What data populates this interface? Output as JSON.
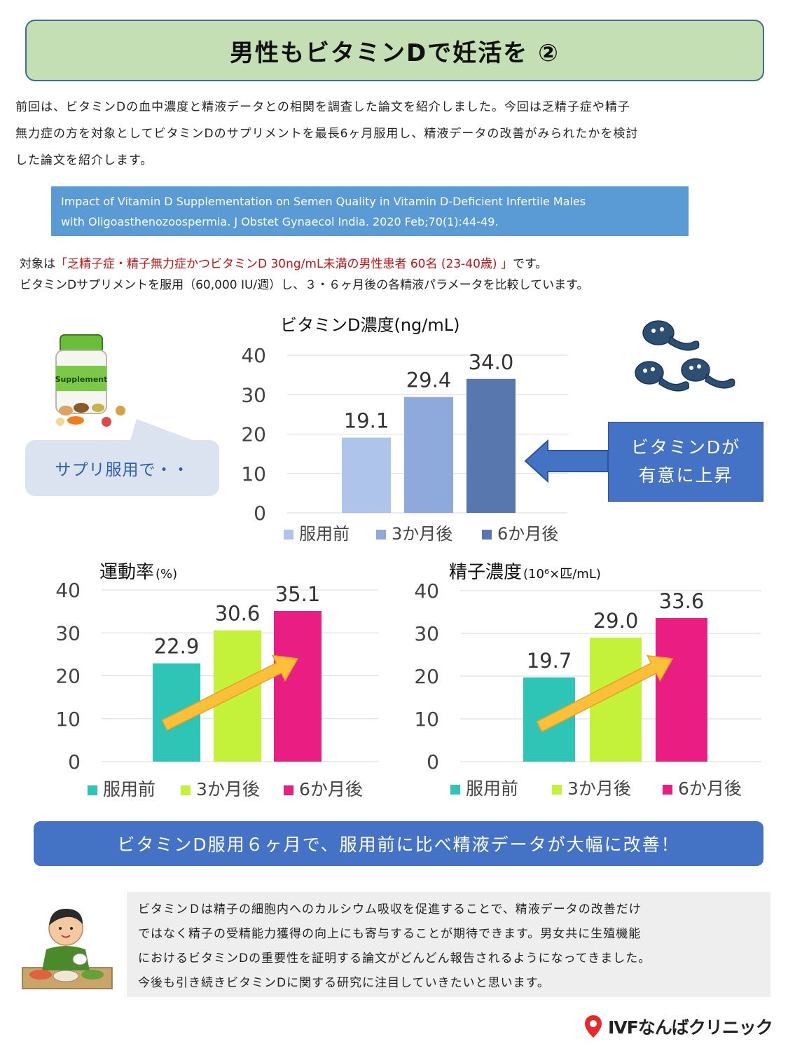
{
  "title": "男性もビタミンDで妊活を ②",
  "intro": {
    "line1": "前回は、ビタミンDの血中濃度と精液データとの相関を調査した論文を紹介しました。今回は乏精子症や精子",
    "line2": "無力症の方を対象としてビタミンDのサプリメントを最長6ヶ月服用し、精液データの改善がみられたかを検討",
    "line3": "した論文を紹介します。"
  },
  "citation": {
    "line1": "Impact of Vitamin D Supplementation on Semen Quality in Vitamin D-Deficient Infertile Males",
    "line2": "with Oligoasthenozoospermia. J Obstet Gynaecol India. 2020 Feb;70(1):44-49."
  },
  "subject": {
    "prefix": "対象は",
    "highlight": "「乏精子症・精子無力症かつビタミンD 30ng/mL未満の男性患者 60名 (23-40歳) 」",
    "suffix": "です。"
  },
  "method": "ビタミンDサプリメントを服用（60,000 IU/週）し、３・６ヶ月後の各精液パラメータを比較しています。",
  "bubble_text": "サプリ服用で・・",
  "supplement_label": "Supplement",
  "callout": {
    "line1": "ビタミンDが",
    "line2": "有意に上昇"
  },
  "conclusion": "ビタミンD服用６ヶ月で、服用前に比べ精液データが大幅に改善！",
  "note": {
    "line1": "ビタミンＤは精子の細胞内へのカルシウム吸収を促進することで、精液データの改善だけ",
    "line2": "ではなく精子の受精能力獲得の向上にも寄与することが期待できます。男女共に生殖機能",
    "line3": "におけるビタミンDの重要性を証明する論文がどんどん報告されるようになってきました。",
    "line4": "今後も引き続きビタミンDに関する研究に注目していきたいと思います。"
  },
  "logo_text": "IVFなんばクリニック",
  "chart_data": [
    {
      "type": "bar",
      "title": "ビタミンD濃度(ng/mL)",
      "categories": [
        "服用前",
        "3か月後",
        "6か月後"
      ],
      "values": [
        19.1,
        29.4,
        34.0
      ],
      "value_labels": [
        "19.1",
        "29.4",
        "34.0"
      ],
      "colors": [
        "#aec4ea",
        "#8eaadc",
        "#5877ae"
      ],
      "ylim": [
        0,
        40
      ],
      "ticks": [
        0,
        10,
        20,
        30,
        40
      ],
      "grid": true,
      "legend": "bottom"
    },
    {
      "type": "bar",
      "title": "運動率",
      "title_unit": "(%)",
      "categories": [
        "服用前",
        "3か月後",
        "6か月後"
      ],
      "values": [
        22.9,
        30.6,
        35.1
      ],
      "value_labels": [
        "22.9",
        "30.6",
        "35.1"
      ],
      "colors": [
        "#2ec4b6",
        "#c4f23a",
        "#ea1e82"
      ],
      "ylim": [
        0,
        40
      ],
      "ticks": [
        0,
        10,
        20,
        30,
        40
      ],
      "grid": true,
      "legend": "bottom"
    },
    {
      "type": "bar",
      "title": "精子濃度",
      "title_unit": "(10⁶×匹/mL)",
      "categories": [
        "服用前",
        "3か月後",
        "6か月後"
      ],
      "values": [
        19.7,
        29.0,
        33.6
      ],
      "value_labels": [
        "19.7",
        "29.0",
        "33.6"
      ],
      "colors": [
        "#2ec4b6",
        "#c4f23a",
        "#ea1e82"
      ],
      "ylim": [
        0,
        40
      ],
      "ticks": [
        0,
        10,
        20,
        30,
        40
      ],
      "grid": true,
      "legend": "bottom"
    }
  ]
}
